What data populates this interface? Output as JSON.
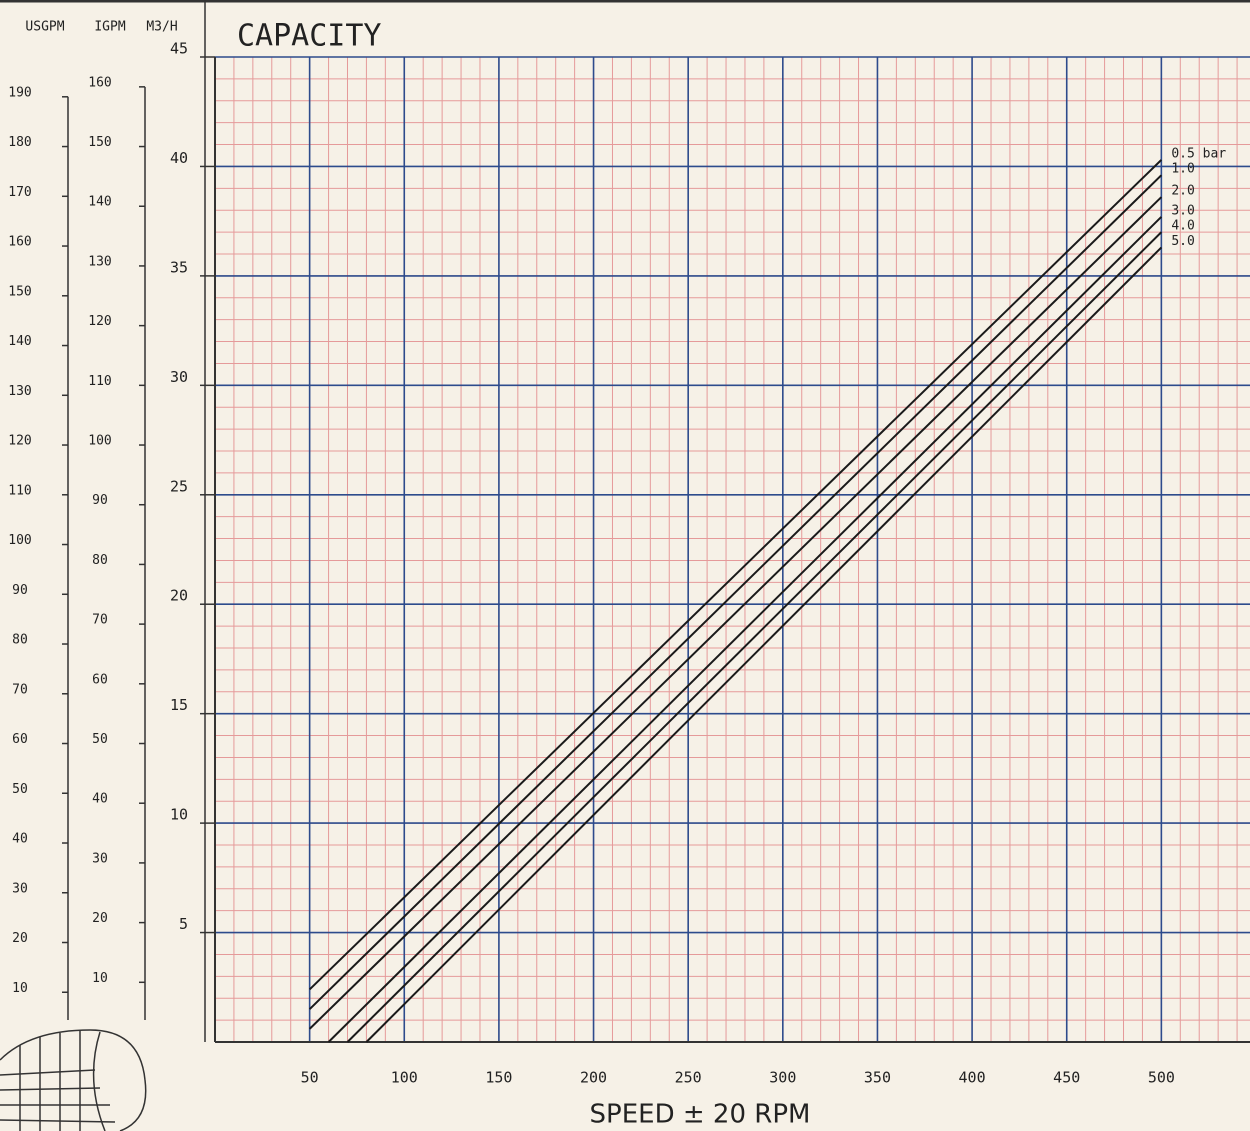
{
  "chart_data": {
    "type": "line",
    "title": "CAPACITY",
    "xlabel": "SPEED  ± 20  RPM",
    "ylabel": "M3/H",
    "xlim": [
      0,
      550
    ],
    "ylim": [
      0,
      45
    ],
    "xticks": [
      50,
      100,
      150,
      200,
      250,
      300,
      350,
      400,
      450,
      500
    ],
    "yticks": [
      5,
      10,
      15,
      20,
      25,
      30,
      35,
      40,
      45
    ],
    "grid": true,
    "minor_grid": {
      "x": 10,
      "y": 1
    },
    "side_axes": [
      {
        "label": "USGPM",
        "lim": [
          0,
          198
        ],
        "ticks": [
          10,
          20,
          30,
          40,
          50,
          60,
          70,
          80,
          90,
          100,
          110,
          120,
          130,
          140,
          150,
          160,
          170,
          180,
          190
        ]
      },
      {
        "label": "IGPM",
        "lim": [
          0,
          165
        ],
        "ticks": [
          10,
          20,
          30,
          40,
          50,
          60,
          70,
          80,
          90,
          100,
          110,
          120,
          130,
          140,
          150,
          160
        ]
      }
    ],
    "series": [
      {
        "name": "0.5 bar",
        "color": "#1a1a1a",
        "x": [
          50,
          500
        ],
        "values": [
          2.4,
          40.3
        ]
      },
      {
        "name": "1.0",
        "color": "#1a1a1a",
        "x": [
          50,
          500
        ],
        "values": [
          1.5,
          39.6
        ]
      },
      {
        "name": "2.0",
        "color": "#1a1a1a",
        "x": [
          50,
          500
        ],
        "values": [
          0.6,
          38.6
        ]
      },
      {
        "name": "3.0",
        "color": "#1a1a1a",
        "x": [
          60,
          500
        ],
        "values": [
          0,
          37.7
        ]
      },
      {
        "name": "4.0",
        "color": "#1a1a1a",
        "x": [
          70,
          500
        ],
        "values": [
          0,
          37.0
        ]
      },
      {
        "name": "5.0",
        "color": "#1a1a1a",
        "x": [
          80,
          500
        ],
        "values": [
          0,
          36.3
        ]
      }
    ]
  }
}
